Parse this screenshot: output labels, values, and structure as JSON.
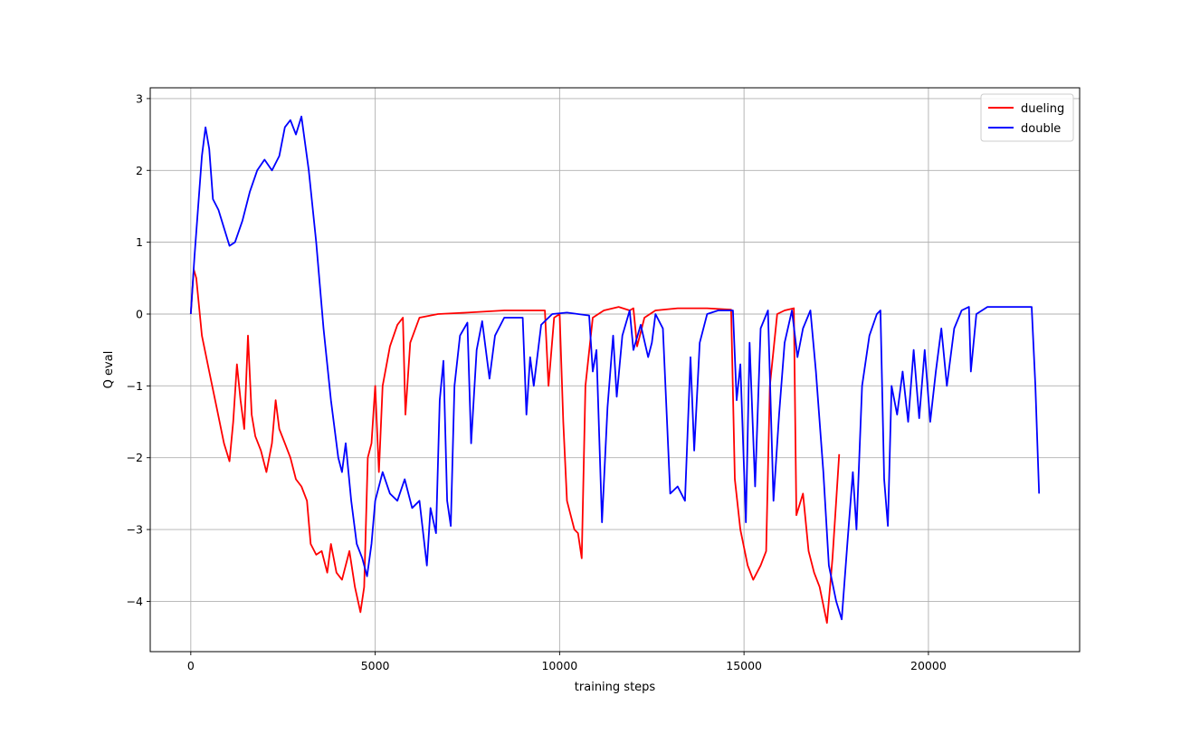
{
  "chart_data": {
    "type": "line",
    "title": "",
    "xlabel": "training steps",
    "ylabel": "Q eval",
    "xlim": [
      -1100,
      24100
    ],
    "ylim": [
      -4.7,
      3.15
    ],
    "xticks": [
      0,
      5000,
      10000,
      15000,
      20000
    ],
    "xtick_labels": [
      "0",
      "5000",
      "10000",
      "15000",
      "20000"
    ],
    "yticks": [
      -4,
      -3,
      -2,
      -1,
      0,
      1,
      2,
      3
    ],
    "ytick_labels": [
      "−4",
      "−3",
      "−2",
      "−1",
      "0",
      "1",
      "2",
      "3"
    ],
    "grid": true,
    "legend_position": "top-right",
    "series": [
      {
        "name": "dueling",
        "color": "#ff0000",
        "points": [
          [
            0,
            0.0
          ],
          [
            80,
            0.62
          ],
          [
            150,
            0.5
          ],
          [
            300,
            -0.3
          ],
          [
            500,
            -0.8
          ],
          [
            700,
            -1.3
          ],
          [
            900,
            -1.8
          ],
          [
            1050,
            -2.05
          ],
          [
            1150,
            -1.5
          ],
          [
            1250,
            -0.7
          ],
          [
            1350,
            -1.2
          ],
          [
            1450,
            -1.6
          ],
          [
            1550,
            -0.3
          ],
          [
            1650,
            -1.4
          ],
          [
            1750,
            -1.7
          ],
          [
            1900,
            -1.9
          ],
          [
            2050,
            -2.2
          ],
          [
            2200,
            -1.8
          ],
          [
            2300,
            -1.2
          ],
          [
            2400,
            -1.6
          ],
          [
            2550,
            -1.8
          ],
          [
            2700,
            -2.0
          ],
          [
            2850,
            -2.3
          ],
          [
            3000,
            -2.4
          ],
          [
            3150,
            -2.6
          ],
          [
            3250,
            -3.2
          ],
          [
            3400,
            -3.35
          ],
          [
            3550,
            -3.3
          ],
          [
            3700,
            -3.6
          ],
          [
            3800,
            -3.2
          ],
          [
            3950,
            -3.6
          ],
          [
            4100,
            -3.7
          ],
          [
            4300,
            -3.3
          ],
          [
            4450,
            -3.8
          ],
          [
            4600,
            -4.15
          ],
          [
            4700,
            -3.8
          ],
          [
            4800,
            -2.0
          ],
          [
            4900,
            -1.8
          ],
          [
            5000,
            -1.0
          ],
          [
            5100,
            -2.2
          ],
          [
            5200,
            -1.0
          ],
          [
            5400,
            -0.45
          ],
          [
            5600,
            -0.15
          ],
          [
            5750,
            -0.05
          ],
          [
            5820,
            -1.4
          ],
          [
            5950,
            -0.4
          ],
          [
            6200,
            -0.05
          ],
          [
            6700,
            0.0
          ],
          [
            7500,
            0.02
          ],
          [
            8500,
            0.05
          ],
          [
            9600,
            0.05
          ],
          [
            9700,
            -1.0
          ],
          [
            9850,
            -0.05
          ],
          [
            10000,
            0.0
          ],
          [
            10100,
            -1.5
          ],
          [
            10200,
            -2.6
          ],
          [
            10400,
            -3.0
          ],
          [
            10500,
            -3.05
          ],
          [
            10600,
            -3.4
          ],
          [
            10700,
            -1.0
          ],
          [
            10900,
            -0.05
          ],
          [
            11200,
            0.05
          ],
          [
            11600,
            0.1
          ],
          [
            11900,
            0.05
          ],
          [
            12000,
            0.08
          ],
          [
            12100,
            -0.45
          ],
          [
            12300,
            -0.05
          ],
          [
            12600,
            0.05
          ],
          [
            13200,
            0.08
          ],
          [
            14000,
            0.08
          ],
          [
            14650,
            0.06
          ],
          [
            14750,
            -2.3
          ],
          [
            14900,
            -3.0
          ],
          [
            15100,
            -3.5
          ],
          [
            15250,
            -3.7
          ],
          [
            15450,
            -3.5
          ],
          [
            15600,
            -3.3
          ],
          [
            15700,
            -1.0
          ],
          [
            15900,
            0.0
          ],
          [
            16100,
            0.05
          ],
          [
            16350,
            0.08
          ],
          [
            16420,
            -2.8
          ],
          [
            16600,
            -2.5
          ],
          [
            16750,
            -3.3
          ],
          [
            16900,
            -3.6
          ],
          [
            17050,
            -3.8
          ],
          [
            17250,
            -4.3
          ],
          [
            17400,
            -3.4
          ],
          [
            17500,
            -2.6
          ],
          [
            17580,
            -1.95
          ]
        ]
      },
      {
        "name": "double",
        "color": "#0000ff",
        "points": [
          [
            0,
            0.0
          ],
          [
            100,
            0.8
          ],
          [
            200,
            1.5
          ],
          [
            300,
            2.2
          ],
          [
            400,
            2.6
          ],
          [
            500,
            2.3
          ],
          [
            600,
            1.6
          ],
          [
            750,
            1.45
          ],
          [
            900,
            1.2
          ],
          [
            1050,
            0.95
          ],
          [
            1200,
            1.0
          ],
          [
            1400,
            1.3
          ],
          [
            1600,
            1.7
          ],
          [
            1800,
            2.0
          ],
          [
            2000,
            2.15
          ],
          [
            2200,
            2.0
          ],
          [
            2400,
            2.2
          ],
          [
            2550,
            2.6
          ],
          [
            2700,
            2.7
          ],
          [
            2850,
            2.5
          ],
          [
            3000,
            2.75
          ],
          [
            3200,
            2.0
          ],
          [
            3400,
            1.0
          ],
          [
            3600,
            -0.2
          ],
          [
            3800,
            -1.2
          ],
          [
            4000,
            -2.0
          ],
          [
            4100,
            -2.2
          ],
          [
            4200,
            -1.8
          ],
          [
            4350,
            -2.6
          ],
          [
            4500,
            -3.2
          ],
          [
            4650,
            -3.4
          ],
          [
            4780,
            -3.65
          ],
          [
            4900,
            -3.2
          ],
          [
            5000,
            -2.6
          ],
          [
            5200,
            -2.2
          ],
          [
            5400,
            -2.5
          ],
          [
            5600,
            -2.6
          ],
          [
            5800,
            -2.3
          ],
          [
            6000,
            -2.7
          ],
          [
            6200,
            -2.6
          ],
          [
            6400,
            -3.5
          ],
          [
            6500,
            -2.7
          ],
          [
            6650,
            -3.05
          ],
          [
            6750,
            -1.2
          ],
          [
            6850,
            -0.65
          ],
          [
            6950,
            -2.6
          ],
          [
            7050,
            -2.95
          ],
          [
            7150,
            -1.0
          ],
          [
            7300,
            -0.3
          ],
          [
            7500,
            -0.12
          ],
          [
            7600,
            -1.8
          ],
          [
            7750,
            -0.5
          ],
          [
            7900,
            -0.1
          ],
          [
            8100,
            -0.9
          ],
          [
            8250,
            -0.3
          ],
          [
            8500,
            -0.05
          ],
          [
            9000,
            -0.05
          ],
          [
            9100,
            -1.4
          ],
          [
            9200,
            -0.6
          ],
          [
            9300,
            -1.0
          ],
          [
            9500,
            -0.15
          ],
          [
            9800,
            0.0
          ],
          [
            10200,
            0.02
          ],
          [
            10800,
            -0.02
          ],
          [
            10900,
            -0.8
          ],
          [
            11000,
            -0.5
          ],
          [
            11150,
            -2.9
          ],
          [
            11300,
            -1.3
          ],
          [
            11450,
            -0.3
          ],
          [
            11550,
            -1.15
          ],
          [
            11700,
            -0.3
          ],
          [
            11900,
            0.05
          ],
          [
            12000,
            -0.5
          ],
          [
            12200,
            -0.15
          ],
          [
            12400,
            -0.6
          ],
          [
            12500,
            -0.4
          ],
          [
            12600,
            0.0
          ],
          [
            12800,
            -0.2
          ],
          [
            13000,
            -2.5
          ],
          [
            13200,
            -2.4
          ],
          [
            13400,
            -2.6
          ],
          [
            13550,
            -0.6
          ],
          [
            13650,
            -1.9
          ],
          [
            13800,
            -0.4
          ],
          [
            14000,
            0.0
          ],
          [
            14300,
            0.05
          ],
          [
            14500,
            0.05
          ],
          [
            14700,
            0.05
          ],
          [
            14800,
            -1.2
          ],
          [
            14900,
            -0.7
          ],
          [
            15050,
            -2.9
          ],
          [
            15150,
            -0.4
          ],
          [
            15300,
            -2.4
          ],
          [
            15450,
            -0.2
          ],
          [
            15650,
            0.05
          ],
          [
            15800,
            -2.6
          ],
          [
            15950,
            -1.4
          ],
          [
            16100,
            -0.4
          ],
          [
            16300,
            0.05
          ],
          [
            16450,
            -0.6
          ],
          [
            16600,
            -0.2
          ],
          [
            16800,
            0.05
          ],
          [
            16950,
            -0.8
          ],
          [
            17150,
            -2.2
          ],
          [
            17300,
            -3.5
          ],
          [
            17500,
            -4.0
          ],
          [
            17650,
            -4.25
          ],
          [
            17800,
            -3.2
          ],
          [
            17950,
            -2.2
          ],
          [
            18050,
            -3.0
          ],
          [
            18200,
            -1.0
          ],
          [
            18400,
            -0.3
          ],
          [
            18600,
            0.0
          ],
          [
            18700,
            0.05
          ],
          [
            18800,
            -2.3
          ],
          [
            18900,
            -2.95
          ],
          [
            19000,
            -1.0
          ],
          [
            19150,
            -1.4
          ],
          [
            19300,
            -0.8
          ],
          [
            19450,
            -1.5
          ],
          [
            19600,
            -0.5
          ],
          [
            19750,
            -1.45
          ],
          [
            19900,
            -0.5
          ],
          [
            20050,
            -1.5
          ],
          [
            20200,
            -0.8
          ],
          [
            20350,
            -0.2
          ],
          [
            20500,
            -1.0
          ],
          [
            20700,
            -0.2
          ],
          [
            20900,
            0.05
          ],
          [
            21100,
            0.1
          ],
          [
            21150,
            -0.8
          ],
          [
            21300,
            0.0
          ],
          [
            21600,
            0.1
          ],
          [
            22000,
            0.1
          ],
          [
            22500,
            0.1
          ],
          [
            22800,
            0.1
          ],
          [
            22900,
            -1.0
          ],
          [
            23000,
            -2.5
          ]
        ]
      }
    ]
  }
}
